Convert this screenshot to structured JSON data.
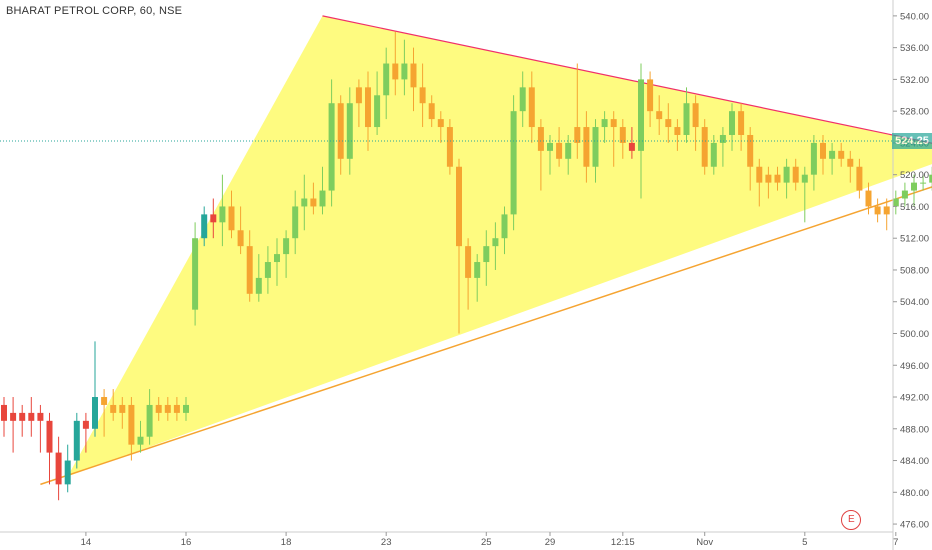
{
  "header": {
    "title": "BHARAT PETROL CORP, 60, NSE"
  },
  "price_badge": "524.25",
  "event_marker": "E",
  "colors": {
    "up": "#7ecd5e",
    "down_red": "#e8463c",
    "down_orange": "#f5a431",
    "teal": "#26a69a",
    "triangle_fill": "#fefb79",
    "upper_line": "#f0306a",
    "lower_line": "#f5a431",
    "price_line": "#26a69a",
    "axis_text": "#555555"
  },
  "chart_data": {
    "type": "candlestick",
    "y_axis": {
      "ticks": [
        476,
        480,
        484,
        488,
        492,
        496,
        500,
        504,
        508,
        512,
        516,
        520,
        524,
        528,
        532,
        536,
        540
      ],
      "tick_labels": [
        "476.00",
        "480.00",
        "484.00",
        "488.00",
        "492.00",
        "496.00",
        "500.00",
        "504.00",
        "508.00",
        "512.00",
        "516.00",
        "520.00",
        "524.00",
        "528.00",
        "532.00",
        "536.00",
        "540.00"
      ],
      "range": [
        475,
        542
      ]
    },
    "x_axis": {
      "ticks": [
        {
          "label": "14",
          "bar": 9
        },
        {
          "label": "16",
          "bar": 20
        },
        {
          "label": "18",
          "bar": 31
        },
        {
          "label": "23",
          "bar": 42
        },
        {
          "label": "25",
          "bar": 53
        },
        {
          "label": "29",
          "bar": 60
        },
        {
          "label": "12:15",
          "bar": 68
        },
        {
          "label": "Nov",
          "bar": 77
        },
        {
          "label": "5",
          "bar": 88
        },
        {
          "label": "7",
          "bar": 98
        }
      ]
    },
    "current_price": 524.25,
    "candles": [
      {
        "o": 491,
        "h": 492,
        "l": 487,
        "c": 489,
        "col": "red"
      },
      {
        "o": 489,
        "h": 492,
        "l": 485,
        "c": 490,
        "col": "red"
      },
      {
        "o": 490,
        "h": 491,
        "l": 487,
        "c": 489,
        "col": "red"
      },
      {
        "o": 489,
        "h": 492,
        "l": 487,
        "c": 490,
        "col": "red"
      },
      {
        "o": 490,
        "h": 491,
        "l": 485,
        "c": 489,
        "col": "red"
      },
      {
        "o": 489,
        "h": 490,
        "l": 481,
        "c": 485,
        "col": "red"
      },
      {
        "o": 485,
        "h": 487,
        "l": 479,
        "c": 481,
        "col": "red"
      },
      {
        "o": 481,
        "h": 486,
        "l": 480,
        "c": 484,
        "col": "teal"
      },
      {
        "o": 484,
        "h": 490,
        "l": 483,
        "c": 489,
        "col": "teal"
      },
      {
        "o": 489,
        "h": 490,
        "l": 485,
        "c": 488,
        "col": "red"
      },
      {
        "o": 488,
        "h": 499,
        "l": 487,
        "c": 492,
        "col": "teal"
      },
      {
        "o": 492,
        "h": 493,
        "l": 487,
        "c": 491,
        "col": "orange"
      },
      {
        "o": 491,
        "h": 493,
        "l": 489,
        "c": 490,
        "col": "orange"
      },
      {
        "o": 490,
        "h": 492,
        "l": 488,
        "c": 491,
        "col": "orange"
      },
      {
        "o": 491,
        "h": 492,
        "l": 484,
        "c": 486,
        "col": "orange"
      },
      {
        "o": 486,
        "h": 489,
        "l": 485,
        "c": 487,
        "col": "green"
      },
      {
        "o": 487,
        "h": 493,
        "l": 486,
        "c": 491,
        "col": "green"
      },
      {
        "o": 491,
        "h": 492,
        "l": 489,
        "c": 490,
        "col": "orange"
      },
      {
        "o": 490,
        "h": 492,
        "l": 489,
        "c": 491,
        "col": "orange"
      },
      {
        "o": 491,
        "h": 492,
        "l": 489,
        "c": 490,
        "col": "orange"
      },
      {
        "o": 490,
        "h": 492,
        "l": 489,
        "c": 491,
        "col": "green"
      },
      {
        "o": 503,
        "h": 514,
        "l": 501,
        "c": 512,
        "col": "green"
      },
      {
        "o": 512,
        "h": 516,
        "l": 511,
        "c": 515,
        "col": "teal"
      },
      {
        "o": 515,
        "h": 517,
        "l": 512,
        "c": 514,
        "col": "red"
      },
      {
        "o": 514,
        "h": 520,
        "l": 511,
        "c": 516,
        "col": "green"
      },
      {
        "o": 516,
        "h": 518,
        "l": 512,
        "c": 513,
        "col": "orange"
      },
      {
        "o": 513,
        "h": 516,
        "l": 510,
        "c": 511,
        "col": "orange"
      },
      {
        "o": 511,
        "h": 513,
        "l": 504,
        "c": 505,
        "col": "orange"
      },
      {
        "o": 505,
        "h": 510,
        "l": 504,
        "c": 507,
        "col": "green"
      },
      {
        "o": 507,
        "h": 511,
        "l": 505,
        "c": 509,
        "col": "green"
      },
      {
        "o": 509,
        "h": 512,
        "l": 506,
        "c": 510,
        "col": "green"
      },
      {
        "o": 510,
        "h": 513,
        "l": 507,
        "c": 512,
        "col": "green"
      },
      {
        "o": 512,
        "h": 518,
        "l": 510,
        "c": 516,
        "col": "green"
      },
      {
        "o": 516,
        "h": 520,
        "l": 513,
        "c": 517,
        "col": "green"
      },
      {
        "o": 517,
        "h": 519,
        "l": 515,
        "c": 516,
        "col": "orange"
      },
      {
        "o": 516,
        "h": 521,
        "l": 515,
        "c": 518,
        "col": "green"
      },
      {
        "o": 518,
        "h": 532,
        "l": 516,
        "c": 529,
        "col": "green"
      },
      {
        "o": 529,
        "h": 530,
        "l": 520,
        "c": 522,
        "col": "orange"
      },
      {
        "o": 522,
        "h": 531,
        "l": 520,
        "c": 529,
        "col": "green"
      },
      {
        "o": 529,
        "h": 532,
        "l": 526,
        "c": 531,
        "col": "orange"
      },
      {
        "o": 531,
        "h": 533,
        "l": 523,
        "c": 526,
        "col": "orange"
      },
      {
        "o": 526,
        "h": 533,
        "l": 525,
        "c": 530,
        "col": "green"
      },
      {
        "o": 530,
        "h": 536,
        "l": 527,
        "c": 534,
        "col": "green"
      },
      {
        "o": 534,
        "h": 538,
        "l": 530,
        "c": 532,
        "col": "orange"
      },
      {
        "o": 532,
        "h": 537,
        "l": 530,
        "c": 534,
        "col": "green"
      },
      {
        "o": 534,
        "h": 536,
        "l": 528,
        "c": 531,
        "col": "orange"
      },
      {
        "o": 531,
        "h": 534,
        "l": 526,
        "c": 529,
        "col": "orange"
      },
      {
        "o": 529,
        "h": 530,
        "l": 526,
        "c": 527,
        "col": "orange"
      },
      {
        "o": 527,
        "h": 528,
        "l": 524,
        "c": 526,
        "col": "orange"
      },
      {
        "o": 526,
        "h": 527,
        "l": 520,
        "c": 521,
        "col": "orange"
      },
      {
        "o": 521,
        "h": 522,
        "l": 500,
        "c": 511,
        "col": "orange"
      },
      {
        "o": 511,
        "h": 512,
        "l": 503,
        "c": 507,
        "col": "orange"
      },
      {
        "o": 507,
        "h": 510,
        "l": 504,
        "c": 509,
        "col": "green"
      },
      {
        "o": 509,
        "h": 513,
        "l": 506,
        "c": 511,
        "col": "green"
      },
      {
        "o": 511,
        "h": 514,
        "l": 508,
        "c": 512,
        "col": "green"
      },
      {
        "o": 512,
        "h": 516,
        "l": 510,
        "c": 515,
        "col": "green"
      },
      {
        "o": 515,
        "h": 530,
        "l": 513,
        "c": 528,
        "col": "green"
      },
      {
        "o": 528,
        "h": 533,
        "l": 526,
        "c": 531,
        "col": "green"
      },
      {
        "o": 531,
        "h": 533,
        "l": 524,
        "c": 526,
        "col": "orange"
      },
      {
        "o": 526,
        "h": 527,
        "l": 518,
        "c": 523,
        "col": "orange"
      },
      {
        "o": 523,
        "h": 525,
        "l": 520,
        "c": 524,
        "col": "green"
      },
      {
        "o": 524,
        "h": 526,
        "l": 521,
        "c": 522,
        "col": "orange"
      },
      {
        "o": 522,
        "h": 525,
        "l": 520,
        "c": 524,
        "col": "green"
      },
      {
        "o": 524,
        "h": 534,
        "l": 522,
        "c": 526,
        "col": "orange"
      },
      {
        "o": 526,
        "h": 528,
        "l": 519,
        "c": 521,
        "col": "orange"
      },
      {
        "o": 521,
        "h": 527,
        "l": 519,
        "c": 526,
        "col": "green"
      },
      {
        "o": 526,
        "h": 528,
        "l": 524,
        "c": 527,
        "col": "green"
      },
      {
        "o": 527,
        "h": 528,
        "l": 521,
        "c": 526,
        "col": "orange"
      },
      {
        "o": 526,
        "h": 527,
        "l": 522,
        "c": 524,
        "col": "orange"
      },
      {
        "o": 524,
        "h": 526,
        "l": 522,
        "c": 523,
        "col": "red"
      },
      {
        "o": 523,
        "h": 534,
        "l": 517,
        "c": 532,
        "col": "green"
      },
      {
        "o": 532,
        "h": 533,
        "l": 526,
        "c": 528,
        "col": "orange"
      },
      {
        "o": 528,
        "h": 530,
        "l": 525,
        "c": 527,
        "col": "orange"
      },
      {
        "o": 527,
        "h": 529,
        "l": 524,
        "c": 526,
        "col": "orange"
      },
      {
        "o": 526,
        "h": 527,
        "l": 523,
        "c": 525,
        "col": "orange"
      },
      {
        "o": 525,
        "h": 531,
        "l": 524,
        "c": 529,
        "col": "green"
      },
      {
        "o": 529,
        "h": 530,
        "l": 523,
        "c": 526,
        "col": "orange"
      },
      {
        "o": 526,
        "h": 527,
        "l": 520,
        "c": 521,
        "col": "orange"
      },
      {
        "o": 521,
        "h": 525,
        "l": 520,
        "c": 524,
        "col": "green"
      },
      {
        "o": 524,
        "h": 526,
        "l": 521,
        "c": 525,
        "col": "green"
      },
      {
        "o": 525,
        "h": 529,
        "l": 523,
        "c": 528,
        "col": "green"
      },
      {
        "o": 528,
        "h": 529,
        "l": 523,
        "c": 525,
        "col": "orange"
      },
      {
        "o": 525,
        "h": 526,
        "l": 518,
        "c": 521,
        "col": "orange"
      },
      {
        "o": 521,
        "h": 522,
        "l": 516,
        "c": 519,
        "col": "orange"
      },
      {
        "o": 519,
        "h": 521,
        "l": 517,
        "c": 520,
        "col": "orange"
      },
      {
        "o": 520,
        "h": 521,
        "l": 518,
        "c": 519,
        "col": "orange"
      },
      {
        "o": 519,
        "h": 522,
        "l": 517,
        "c": 521,
        "col": "green"
      },
      {
        "o": 521,
        "h": 522,
        "l": 518,
        "c": 519,
        "col": "orange"
      },
      {
        "o": 519,
        "h": 521,
        "l": 514,
        "c": 520,
        "col": "green"
      },
      {
        "o": 520,
        "h": 525,
        "l": 518,
        "c": 524,
        "col": "green"
      },
      {
        "o": 524,
        "h": 525,
        "l": 520,
        "c": 522,
        "col": "orange"
      },
      {
        "o": 522,
        "h": 524,
        "l": 520,
        "c": 523,
        "col": "green"
      },
      {
        "o": 523,
        "h": 524,
        "l": 521,
        "c": 522,
        "col": "orange"
      },
      {
        "o": 522,
        "h": 523,
        "l": 519,
        "c": 521,
        "col": "orange"
      },
      {
        "o": 521,
        "h": 522,
        "l": 517,
        "c": 518,
        "col": "orange"
      },
      {
        "o": 518,
        "h": 519,
        "l": 515,
        "c": 516,
        "col": "orange"
      },
      {
        "o": 516,
        "h": 517,
        "l": 514,
        "c": 515,
        "col": "orange"
      },
      {
        "o": 515,
        "h": 517,
        "l": 513,
        "c": 516,
        "col": "orange"
      },
      {
        "o": 516,
        "h": 518,
        "l": 515,
        "c": 517,
        "col": "green"
      },
      {
        "o": 517,
        "h": 519,
        "l": 516,
        "c": 518,
        "col": "green"
      },
      {
        "o": 518,
        "h": 520,
        "l": 516,
        "c": 519,
        "col": "green"
      },
      {
        "o": 519,
        "h": 520,
        "l": 518,
        "c": 519,
        "col": "green"
      },
      {
        "o": 519,
        "h": 521,
        "l": 518,
        "c": 520,
        "col": "green"
      },
      {
        "o": 520,
        "h": 522,
        "l": 519,
        "c": 521,
        "col": "green"
      },
      {
        "o": 521,
        "h": 525,
        "l": 520,
        "c": 524,
        "col": "green"
      },
      {
        "o": 523,
        "h": 525,
        "l": 522,
        "c": 524,
        "col": "green"
      }
    ],
    "drawings": {
      "triangle": [
        {
          "bar": 7,
          "price": 482
        },
        {
          "bar": 35,
          "price": 540
        },
        {
          "bar": 106,
          "price": 523
        }
      ],
      "upper_trendline": [
        {
          "bar": 35,
          "price": 540
        },
        {
          "bar": 106,
          "price": 523
        }
      ],
      "lower_trendline": [
        {
          "bar": 4,
          "price": 481
        },
        {
          "bar": 106,
          "price": 520
        }
      ]
    }
  }
}
